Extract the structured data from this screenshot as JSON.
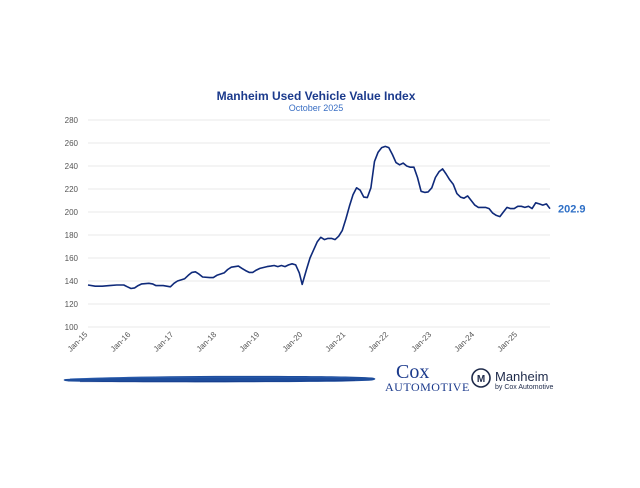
{
  "chart_data": {
    "type": "line",
    "title": "Manheim Used Vehicle Value Index",
    "subtitle": "October 2025",
    "xlabel": "",
    "ylabel": "",
    "ylim": [
      100,
      280
    ],
    "yticks": [
      100,
      120,
      140,
      160,
      180,
      200,
      220,
      240,
      260,
      280
    ],
    "xticks": [
      {
        "label": "Jan-15",
        "x": 0
      },
      {
        "label": "Jan-16",
        "x": 12
      },
      {
        "label": "Jan-17",
        "x": 24
      },
      {
        "label": "Jan-18",
        "x": 36
      },
      {
        "label": "Jan-19",
        "x": 48
      },
      {
        "label": "Jan-20",
        "x": 60
      },
      {
        "label": "Jan-21",
        "x": 72
      },
      {
        "label": "Jan-22",
        "x": 84
      },
      {
        "label": "Jan-23",
        "x": 96
      },
      {
        "label": "Jan-24",
        "x": 108
      },
      {
        "label": "Jan-25",
        "x": 120
      }
    ],
    "xlim": [
      0,
      129
    ],
    "grid": true,
    "series": [
      {
        "name": "Manheim Used Vehicle Value Index",
        "color": "#0f2a7a",
        "points": [
          [
            0,
            136.5
          ],
          [
            2,
            135.5
          ],
          [
            4,
            135.5
          ],
          [
            6,
            136
          ],
          [
            8,
            136.5
          ],
          [
            10,
            136.5
          ],
          [
            11,
            135
          ],
          [
            12,
            133.5
          ],
          [
            13,
            134
          ],
          [
            14,
            136
          ],
          [
            15,
            137.5
          ],
          [
            17,
            138
          ],
          [
            18,
            137.5
          ],
          [
            19,
            136
          ],
          [
            21,
            136
          ],
          [
            22,
            135.5
          ],
          [
            23,
            135
          ],
          [
            24,
            138
          ],
          [
            25,
            140
          ],
          [
            27,
            142
          ],
          [
            28,
            145
          ],
          [
            29,
            147.5
          ],
          [
            30,
            148
          ],
          [
            31,
            146
          ],
          [
            32,
            143.5
          ],
          [
            34,
            143
          ],
          [
            35,
            143
          ],
          [
            36,
            145
          ],
          [
            38,
            147
          ],
          [
            39,
            150
          ],
          [
            40,
            152
          ],
          [
            42,
            153
          ],
          [
            43,
            151
          ],
          [
            44,
            149
          ],
          [
            45,
            147.5
          ],
          [
            46,
            147.5
          ],
          [
            47,
            149.5
          ],
          [
            48,
            151
          ],
          [
            50,
            152.5
          ],
          [
            51,
            153
          ],
          [
            52,
            153.5
          ],
          [
            53,
            152.5
          ],
          [
            54,
            153.5
          ],
          [
            55,
            152.5
          ],
          [
            56,
            154
          ],
          [
            57,
            155
          ],
          [
            58,
            154
          ],
          [
            59,
            147
          ],
          [
            59.8,
            137
          ],
          [
            61,
            150
          ],
          [
            62,
            160
          ],
          [
            63,
            167
          ],
          [
            64,
            174
          ],
          [
            65,
            178
          ],
          [
            66,
            176
          ],
          [
            67,
            177
          ],
          [
            68,
            177
          ],
          [
            69,
            176
          ],
          [
            70,
            179
          ],
          [
            71,
            184
          ],
          [
            72,
            194
          ],
          [
            73,
            205
          ],
          [
            74,
            215
          ],
          [
            75,
            221
          ],
          [
            76,
            219
          ],
          [
            77,
            213
          ],
          [
            78,
            212.5
          ],
          [
            79,
            221
          ],
          [
            80,
            244
          ],
          [
            81,
            252
          ],
          [
            82,
            256
          ],
          [
            83,
            257
          ],
          [
            84,
            256
          ],
          [
            85,
            250
          ],
          [
            86,
            243
          ],
          [
            87,
            241
          ],
          [
            88,
            242.5
          ],
          [
            89,
            240
          ],
          [
            90,
            239
          ],
          [
            91,
            239
          ],
          [
            92,
            230
          ],
          [
            93,
            218
          ],
          [
            94,
            217
          ],
          [
            95,
            217.5
          ],
          [
            96,
            221
          ],
          [
            97,
            230
          ],
          [
            98,
            235
          ],
          [
            99,
            237.5
          ],
          [
            100,
            233
          ],
          [
            101,
            228
          ],
          [
            102,
            224
          ],
          [
            103,
            216
          ],
          [
            104,
            213
          ],
          [
            105,
            212
          ],
          [
            106,
            214
          ],
          [
            107,
            210
          ],
          [
            108,
            206
          ],
          [
            109,
            204
          ],
          [
            110,
            204
          ],
          [
            111,
            204
          ],
          [
            112,
            203
          ],
          [
            113,
            199
          ],
          [
            114,
            197
          ],
          [
            115,
            196
          ],
          [
            116,
            200
          ],
          [
            117,
            204
          ],
          [
            118,
            203
          ],
          [
            119,
            203
          ],
          [
            120,
            205
          ],
          [
            121,
            205
          ],
          [
            122,
            204
          ],
          [
            123,
            205
          ],
          [
            124,
            203
          ],
          [
            125,
            208
          ],
          [
            126,
            207
          ],
          [
            127,
            206
          ],
          [
            128,
            207
          ],
          [
            129,
            202.9
          ]
        ]
      }
    ],
    "annotations": [
      {
        "text": "202.9",
        "x": 129,
        "y": 202.9,
        "color": "#2e6fc6"
      }
    ]
  },
  "branding": {
    "cox_line1": "Cox",
    "cox_line2": "Automotive",
    "manheim_name": "Manheim",
    "manheim_tagline": "by Cox Automotive",
    "manheim_mark": "M",
    "accent": "#1b3a8c",
    "stroke_color": "#1e4d9c"
  }
}
